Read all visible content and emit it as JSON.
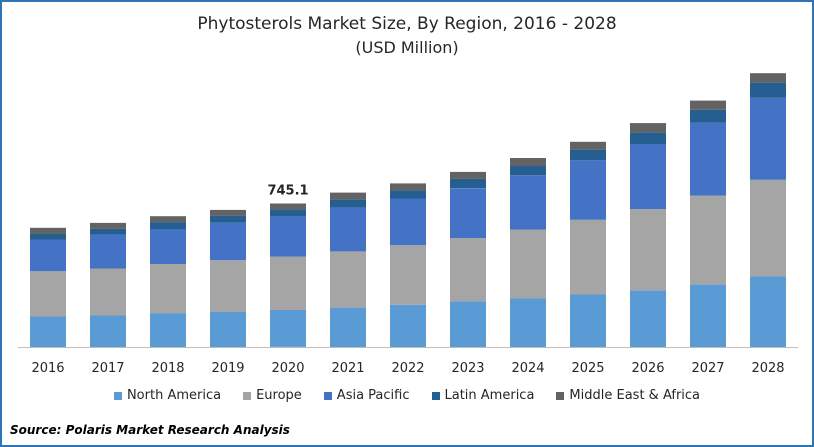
{
  "chart_data": {
    "type": "bar",
    "stacked": true,
    "title": "Phytosterols Market Size, By Region, 2016 - 2028",
    "subtitle": "(USD Million)",
    "xlabel": "",
    "ylabel": "",
    "categories": [
      "2016",
      "2017",
      "2018",
      "2019",
      "2020",
      "2021",
      "2022",
      "2023",
      "2024",
      "2025",
      "2026",
      "2027",
      "2028"
    ],
    "series": [
      {
        "name": "North America",
        "color": "#5b9bd5",
        "values": [
          193,
          199,
          214,
          221,
          234,
          249,
          267,
          288,
          308,
          332,
          358,
          395,
          447
        ]
      },
      {
        "name": "Europe",
        "color": "#a5a5a5",
        "values": [
          286,
          297,
          310,
          327,
          337,
          355,
          376,
          400,
          433,
          471,
          513,
          561,
          610
        ]
      },
      {
        "name": "Asia Pacific",
        "color": "#4472c4",
        "values": [
          200,
          214,
          221,
          237,
          254,
          276,
          295,
          315,
          343,
          376,
          411,
          460,
          517
        ]
      },
      {
        "name": "Latin America",
        "color": "#255e91",
        "values": [
          37,
          37,
          44,
          44,
          44,
          51,
          51,
          59,
          59,
          66,
          73,
          81,
          96
        ]
      },
      {
        "name": "Middle East & Africa",
        "color": "#636363",
        "values": [
          37,
          37,
          37,
          37,
          37,
          44,
          44,
          44,
          51,
          51,
          59,
          59,
          59
        ]
      }
    ],
    "data_labels": [
      {
        "category": "2020",
        "text": "745.1"
      }
    ],
    "ylim": [
      0,
      1800
    ],
    "grid": false,
    "legend_position": "bottom"
  },
  "source_text": "Source: Polaris  Market Research Analysis"
}
